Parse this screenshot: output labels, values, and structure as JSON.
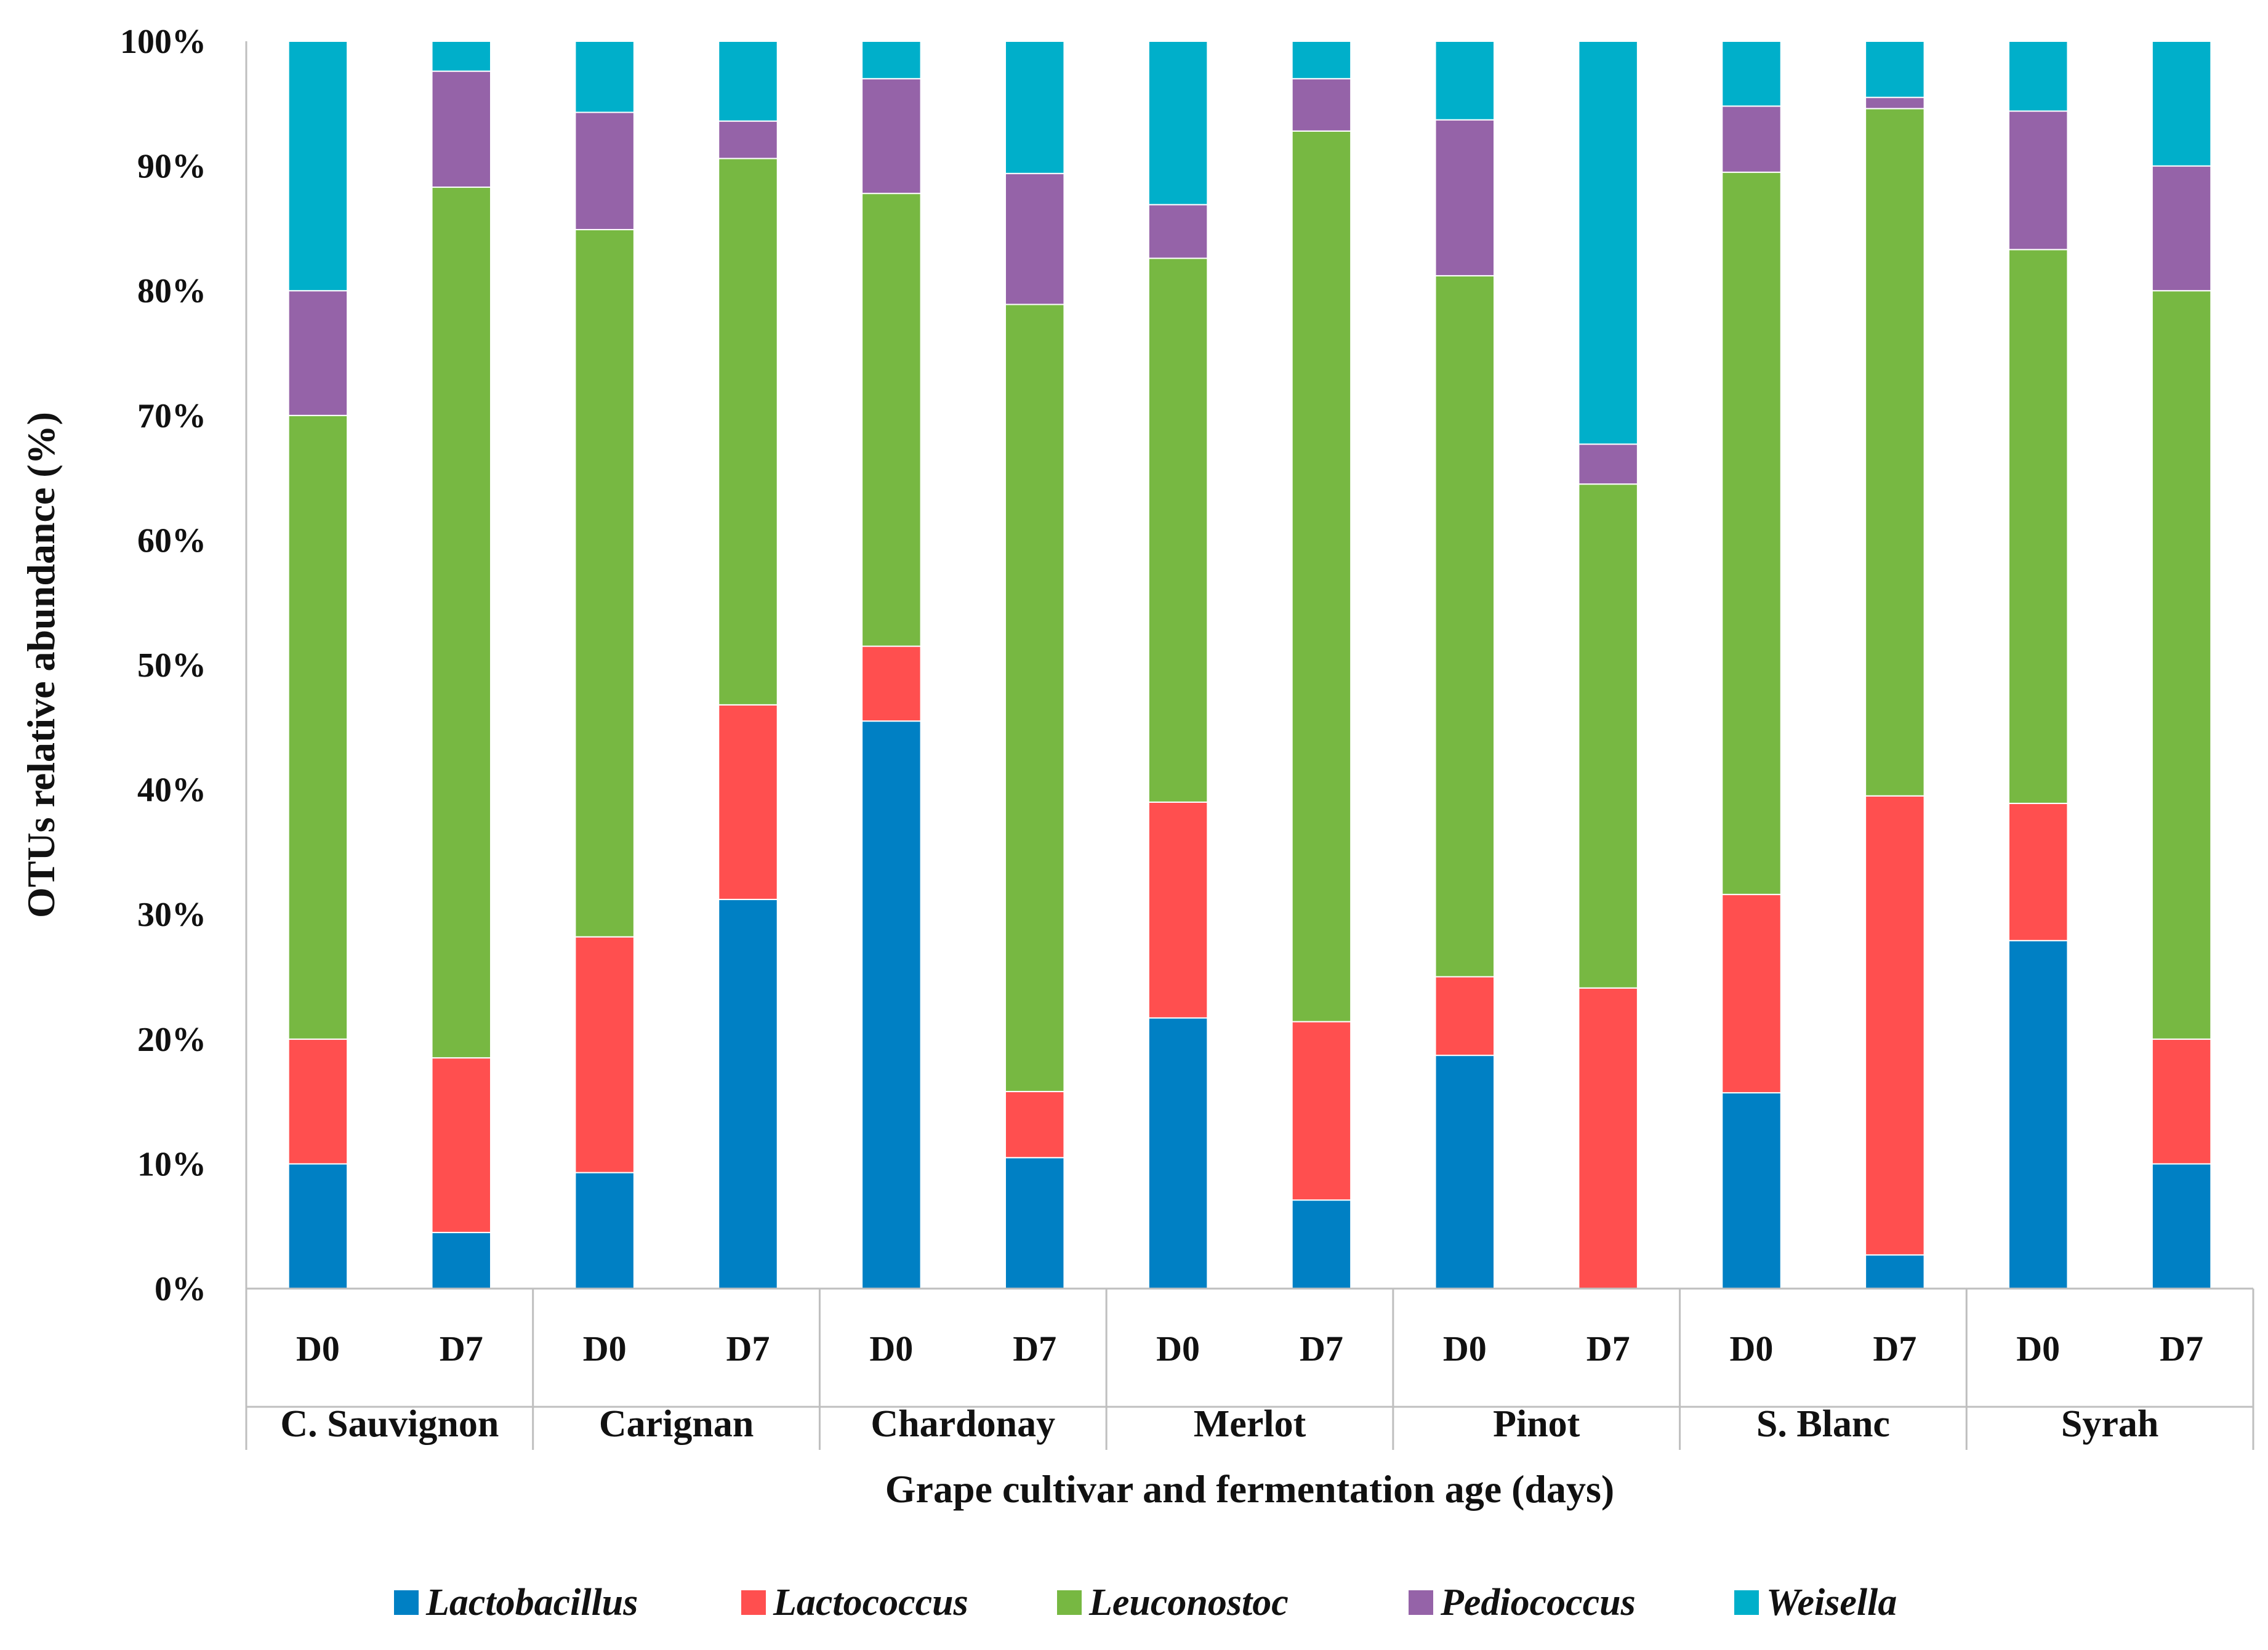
{
  "chart_data": {
    "type": "bar",
    "stacked": true,
    "percent": true,
    "title": "",
    "ylabel": "OTUs relative abundance (%)",
    "xlabel": "Grape cultivar and fermentation age (days)",
    "ylim": [
      0,
      100
    ],
    "y_ticks": [
      "0%",
      "10%",
      "20%",
      "30%",
      "40%",
      "50%",
      "60%",
      "70%",
      "80%",
      "90%",
      "100%"
    ],
    "legend_position": "bottom",
    "groups": [
      {
        "name": "C. Sauvignon",
        "categories": [
          "D0",
          "D7"
        ]
      },
      {
        "name": "Carignan",
        "categories": [
          "D0",
          "D7"
        ]
      },
      {
        "name": "Chardonay",
        "categories": [
          "D0",
          "D7"
        ]
      },
      {
        "name": "Merlot",
        "categories": [
          "D0",
          "D7"
        ]
      },
      {
        "name": "Pinot",
        "categories": [
          "D0",
          "D7"
        ]
      },
      {
        "name": "S. Blanc",
        "categories": [
          "D0",
          "D7"
        ]
      },
      {
        "name": "Syrah",
        "categories": [
          "D0",
          "D7"
        ]
      }
    ],
    "series": [
      {
        "name": "Lactobacillus",
        "color": "#0080c4",
        "values": [
          10,
          4.5,
          9.3,
          31.2,
          45.5,
          10.5,
          21.7,
          7.1,
          18.7,
          0,
          15.7,
          2.7,
          27.9,
          10
        ]
      },
      {
        "name": "Lactococcus",
        "color": "#ff4f4f",
        "values": [
          10,
          14,
          18.9,
          15.6,
          6,
          5.3,
          17.3,
          14.3,
          6.3,
          24.1,
          15.9,
          36.8,
          11,
          10
        ]
      },
      {
        "name": "Leuconostoc",
        "color": "#77b842",
        "values": [
          50,
          69.8,
          56.7,
          43.8,
          36.3,
          63.1,
          43.6,
          71.4,
          56.2,
          40.4,
          57.9,
          55.1,
          44.4,
          60
        ]
      },
      {
        "name": "Pediococcus",
        "color": "#9563a8",
        "values": [
          10,
          9.3,
          9.4,
          3,
          9.2,
          10.5,
          4.3,
          4.2,
          12.5,
          3.2,
          5.3,
          0.9,
          11.1,
          10
        ]
      },
      {
        "name": "Weisella",
        "color": "#00afca",
        "values": [
          20,
          2.4,
          5.7,
          6.4,
          3,
          10.6,
          13.1,
          3,
          6.3,
          32.3,
          5.2,
          4.5,
          5.6,
          10
        ]
      }
    ]
  }
}
